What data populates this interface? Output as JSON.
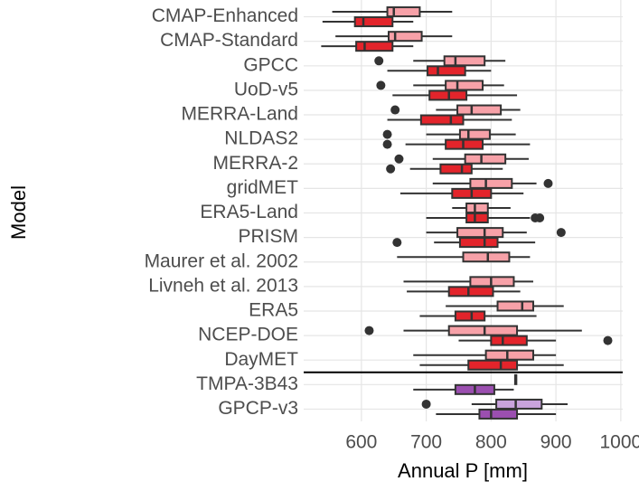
{
  "chart_data": {
    "type": "boxplot",
    "y_label": "Model",
    "x_label": "Annual P [mm]",
    "categories": [
      "CMAP-Enhanced",
      "CMAP-Standard",
      "GPCC",
      "UoD-v5",
      "MERRA-Land",
      "NLDAS2",
      "MERRA-2",
      "gridMET",
      "ERA5-Land",
      "PRISM",
      "Maurer et al. 2002",
      "Livneh et al. 2013",
      "ERA5",
      "NCEP-DOE",
      "DayMET",
      "TMPA-3B43",
      "GPCP-v3"
    ],
    "divider_after": 14,
    "xlim": [
      511,
      1003
    ],
    "xticks": [
      600,
      700,
      800,
      900,
      1000
    ],
    "grid": true,
    "series": [
      {
        "colors": [
          "#f7a1a8",
          "#f7a1a8",
          "#f7a1a8",
          "#f7a1a8",
          "#f7a1a8",
          "#f7a1a8",
          "#f7a1a8",
          "#f7a1a8",
          "#f7a1a8",
          "#f7a1a8",
          "#f7a1a8",
          "#f7a1a8",
          "#f7a1a8",
          "#f7a1a8",
          "#f7a1a8",
          "#c9a3dc",
          "#c9a3dc"
        ],
        "values": [
          {
            "min": 555,
            "q1": 640,
            "median": 650,
            "q3": 690,
            "max": 740,
            "outliers": []
          },
          {
            "min": 560,
            "q1": 642,
            "median": 652,
            "q3": 693,
            "max": 740,
            "outliers": []
          },
          {
            "min": 680,
            "q1": 728,
            "median": 745,
            "q3": 790,
            "max": 822,
            "outliers": [
              627
            ]
          },
          {
            "min": 680,
            "q1": 730,
            "median": 748,
            "q3": 787,
            "max": 820,
            "outliers": [
              630
            ]
          },
          {
            "min": 715,
            "q1": 748,
            "median": 770,
            "q3": 815,
            "max": 845,
            "outliers": [
              652
            ]
          },
          {
            "min": 700,
            "q1": 752,
            "median": 765,
            "q3": 798,
            "max": 838,
            "outliers": [
              640
            ]
          },
          {
            "min": 710,
            "q1": 760,
            "median": 785,
            "q3": 822,
            "max": 858,
            "outliers": [
              658
            ]
          },
          {
            "min": 710,
            "q1": 768,
            "median": 792,
            "q3": 832,
            "max": 870,
            "outliers": [
              888
            ]
          },
          {
            "min": 740,
            "q1": 762,
            "median": 775,
            "q3": 795,
            "max": 830,
            "outliers": []
          },
          {
            "min": 700,
            "q1": 748,
            "median": 790,
            "q3": 818,
            "max": 855,
            "outliers": [
              908
            ]
          },
          {
            "min": 655,
            "q1": 757,
            "median": 795,
            "q3": 828,
            "max": 860,
            "outliers": []
          },
          {
            "min": 665,
            "q1": 768,
            "median": 800,
            "q3": 835,
            "max": 865,
            "outliers": []
          },
          {
            "min": 730,
            "q1": 810,
            "median": 848,
            "q3": 865,
            "max": 912,
            "outliers": []
          },
          {
            "min": 665,
            "q1": 735,
            "median": 790,
            "q3": 840,
            "max": 940,
            "outliers": [
              612
            ]
          },
          {
            "min": 680,
            "q1": 792,
            "median": 825,
            "q3": 865,
            "max": 900,
            "outliers": []
          },
          {
            "min": 836,
            "q1": 837,
            "median": 838,
            "q3": 839,
            "max": 840,
            "outliers": []
          },
          {
            "min": 770,
            "q1": 808,
            "median": 838,
            "q3": 878,
            "max": 918,
            "outliers": [
              700
            ]
          }
        ]
      },
      {
        "colors": [
          "#e3242b",
          "#e3242b",
          "#e3242b",
          "#e3242b",
          "#e3242b",
          "#e3242b",
          "#e3242b",
          "#e3242b",
          "#e3242b",
          "#e3242b",
          "#e3242b",
          "#e3242b",
          "#e3242b",
          "#e3242b",
          "#e3242b",
          "#9b4fb0",
          "#9b4fb0"
        ],
        "values": [
          {
            "min": 540,
            "q1": 590,
            "median": 603,
            "q3": 648,
            "max": 680,
            "outliers": []
          },
          {
            "min": 538,
            "q1": 592,
            "median": 605,
            "q3": 648,
            "max": 680,
            "outliers": []
          },
          {
            "min": 640,
            "q1": 702,
            "median": 718,
            "q3": 760,
            "max": 800,
            "outliers": []
          },
          {
            "min": 648,
            "q1": 705,
            "median": 735,
            "q3": 762,
            "max": 840,
            "outliers": []
          },
          {
            "min": 640,
            "q1": 692,
            "median": 738,
            "q3": 757,
            "max": 832,
            "outliers": []
          },
          {
            "min": 668,
            "q1": 730,
            "median": 757,
            "q3": 787,
            "max": 860,
            "outliers": [
              640
            ]
          },
          {
            "min": 675,
            "q1": 722,
            "median": 755,
            "q3": 770,
            "max": 818,
            "outliers": [
              645
            ]
          },
          {
            "min": 660,
            "q1": 740,
            "median": 770,
            "q3": 800,
            "max": 850,
            "outliers": []
          },
          {
            "min": 700,
            "q1": 762,
            "median": 775,
            "q3": 795,
            "max": 860,
            "outliers": [
              868,
              875
            ]
          },
          {
            "min": 712,
            "q1": 752,
            "median": 790,
            "q3": 810,
            "max": 868,
            "outliers": [
              655
            ]
          },
          null,
          {
            "min": 670,
            "q1": 735,
            "median": 765,
            "q3": 803,
            "max": 845,
            "outliers": []
          },
          {
            "min": 690,
            "q1": 745,
            "median": 770,
            "q3": 790,
            "max": 870,
            "outliers": []
          },
          {
            "min": 750,
            "q1": 800,
            "median": 818,
            "q3": 855,
            "max": 900,
            "outliers": [
              980
            ]
          },
          {
            "min": 690,
            "q1": 765,
            "median": 815,
            "q3": 840,
            "max": 912,
            "outliers": []
          },
          {
            "min": 680,
            "q1": 745,
            "median": 775,
            "q3": 805,
            "max": 835,
            "outliers": []
          },
          {
            "min": 715,
            "q1": 782,
            "median": 800,
            "q3": 840,
            "max": 900,
            "outliers": []
          }
        ]
      }
    ]
  }
}
